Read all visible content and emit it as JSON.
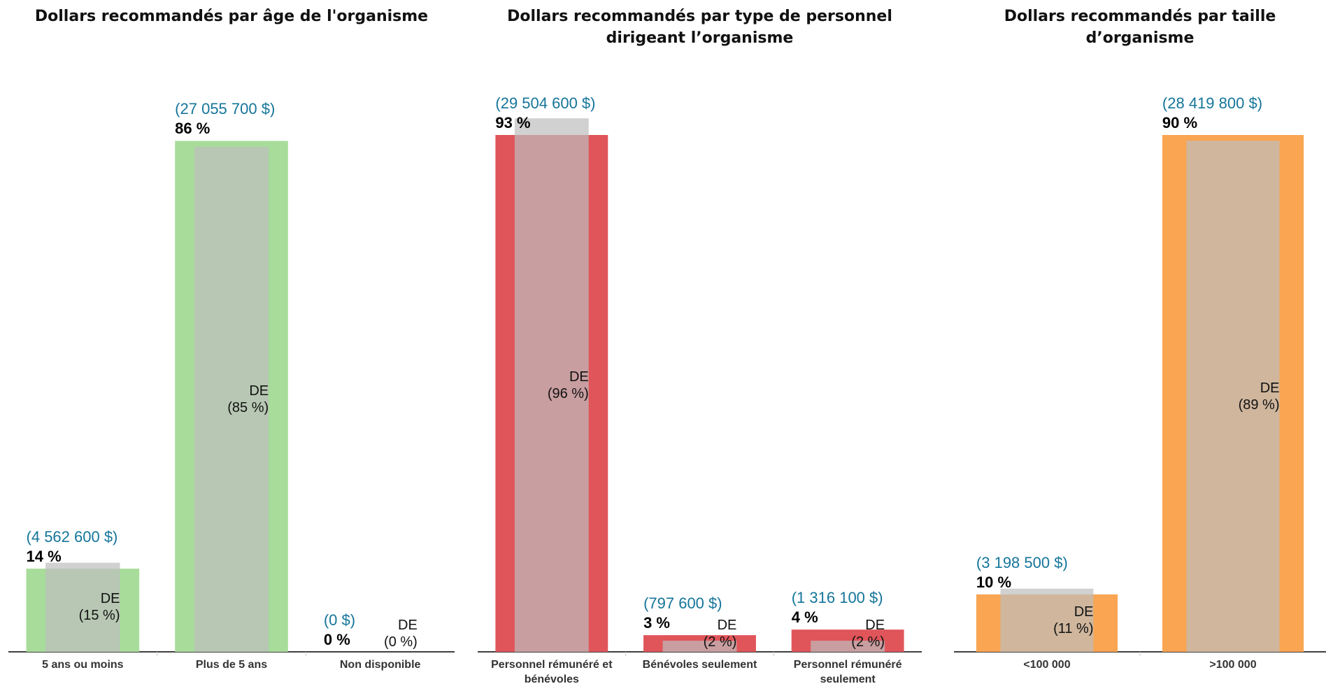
{
  "chart_data": [
    {
      "type": "bar",
      "title": "Dollars recommandés par âge de l'organisme",
      "categories": [
        "5 ans ou moins",
        "Plus de 5 ans",
        "Non disponible"
      ],
      "color": "#a8dc9b",
      "ylim": [
        0,
        87
      ],
      "series": [
        {
          "values": [
            14,
            86,
            0
          ],
          "value_labels": [
            "14 %",
            "86 %",
            "0 %"
          ],
          "dollar_labels": [
            "(4 562 600 $)",
            "(27 055 700 $)",
            "(0 $)"
          ]
        },
        {
          "name": "DE",
          "color": "#bdbdbd",
          "values": [
            15,
            85,
            0
          ],
          "value_labels": [
            "(15 %)",
            "(85 %)",
            "(0 %)"
          ]
        }
      ]
    },
    {
      "type": "bar",
      "title": "Dollars recommandés par type de personnel dirigeant l’organisme",
      "categories": [
        "Personnel rémunéré et bénévoles",
        "Bénévoles seulement",
        "Personnel rémunéré seulement"
      ],
      "color": "#e0555a",
      "ylim": [
        0,
        93
      ],
      "series": [
        {
          "values": [
            93,
            3,
            4
          ],
          "value_labels": [
            "93 %",
            "3 %",
            "4 %"
          ],
          "dollar_labels": [
            "(29 504 600 $)",
            "(797 600 $)",
            "(1 316 100 $)"
          ]
        },
        {
          "name": "DE",
          "color": "#bdbdbd",
          "values": [
            96,
            2,
            2
          ],
          "value_labels": [
            "(96 %)",
            "(2 %)",
            "(2 %)"
          ]
        }
      ]
    },
    {
      "type": "bar",
      "title": "Dollars recommandés par taille d’organisme",
      "categories": [
        "<100 000",
        ">100 000"
      ],
      "color": "#f9a552",
      "ylim": [
        0,
        90
      ],
      "series": [
        {
          "values": [
            10,
            90
          ],
          "value_labels": [
            "10 %",
            "90 %"
          ],
          "dollar_labels": [
            "(3 198 500 $)",
            "(28 419 800 $)"
          ]
        },
        {
          "name": "DE",
          "color": "#bdbdbd",
          "values": [
            11,
            89
          ],
          "value_labels": [
            "(11 %)",
            "(89 %)"
          ]
        }
      ]
    }
  ]
}
